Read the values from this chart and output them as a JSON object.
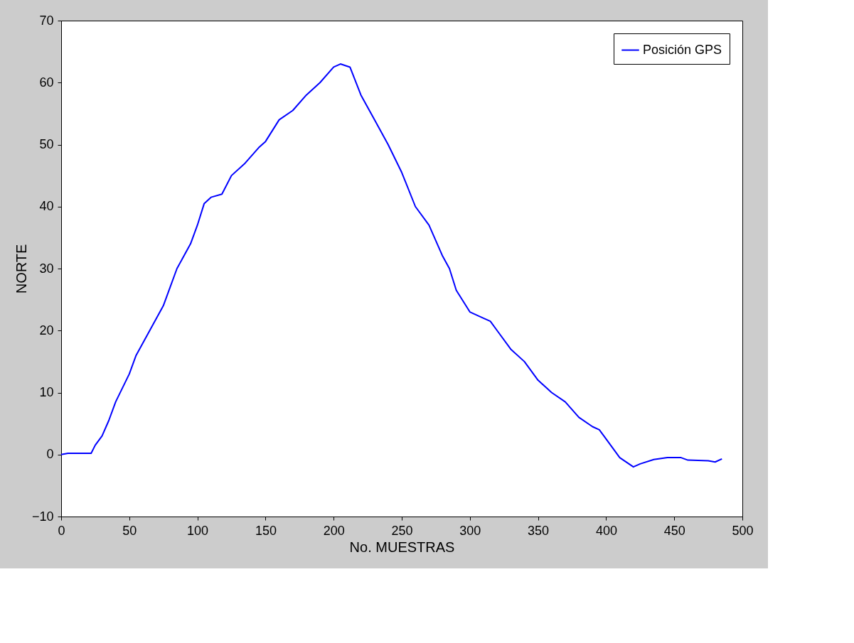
{
  "chart_data": {
    "type": "line",
    "xlabel": "No. MUESTRAS",
    "ylabel": "NORTE",
    "x": [
      0,
      5,
      22,
      25,
      30,
      35,
      40,
      50,
      55,
      65,
      75,
      80,
      85,
      95,
      100,
      105,
      110,
      118,
      125,
      135,
      145,
      150,
      160,
      170,
      180,
      190,
      200,
      205,
      212,
      220,
      230,
      240,
      250,
      260,
      270,
      280,
      285,
      290,
      300,
      310,
      315,
      320,
      330,
      340,
      350,
      360,
      370,
      380,
      390,
      395,
      400,
      410,
      420,
      425,
      435,
      445,
      455,
      460,
      475,
      480,
      485
    ],
    "series": [
      {
        "name": "Posición GPS",
        "color": "#0000ff",
        "values": [
          0,
          0.2,
          0.2,
          1.5,
          3,
          5.5,
          8.5,
          13,
          16,
          20,
          24,
          27,
          30,
          34,
          37,
          40.5,
          41.5,
          42,
          45,
          47,
          49.5,
          50.5,
          54,
          55.5,
          58,
          60,
          62.5,
          63,
          62.5,
          58,
          54,
          50,
          45.5,
          40,
          37,
          32,
          30,
          26.5,
          23,
          22,
          21.5,
          20,
          17,
          15,
          12,
          10,
          8.5,
          6,
          4.5,
          4,
          2.5,
          -0.5,
          -2,
          -1.5,
          -0.8,
          -0.5,
          -0.5,
          -0.9,
          -1,
          -1.2,
          -0.7
        ]
      }
    ],
    "xlim": [
      0,
      500
    ],
    "xticks": [
      0,
      50,
      100,
      150,
      200,
      250,
      300,
      350,
      400,
      450,
      500
    ],
    "ylim": [
      -10,
      70
    ],
    "yticks": [
      -10,
      0,
      10,
      20,
      30,
      40,
      50,
      60,
      70
    ],
    "grid": false,
    "legend": "top right",
    "line_style": "solid",
    "marker": "none"
  }
}
